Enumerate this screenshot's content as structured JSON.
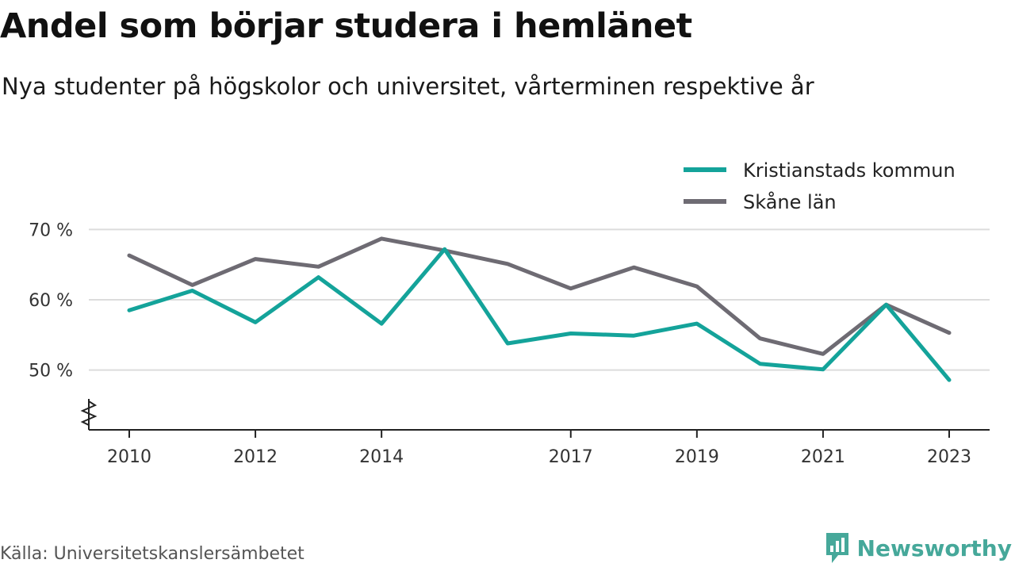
{
  "header": {
    "title": "Andel som börjar studera i hemlänet",
    "subtitle": "Nya studenter på högskolor och universitet, vårterminen respektive år"
  },
  "footer": {
    "source": "Källa: Universitetskanslersämbetet",
    "brand": "Newsworthy"
  },
  "chart_data": {
    "type": "line",
    "title": "Andel som börjar studera i hemlänet",
    "subtitle": "Nya studenter på högskolor och universitet, vårterminen respektive år",
    "x": [
      2010,
      2011,
      2012,
      2013,
      2014,
      2015,
      2016,
      2017,
      2018,
      2019,
      2020,
      2021,
      2022,
      2023
    ],
    "x_tick_labels": [
      "2010",
      "2012",
      "2014",
      "2017",
      "2019",
      "2021",
      "2023"
    ],
    "y_ticks": [
      50,
      60,
      70
    ],
    "y_tick_labels": [
      "50 %",
      "60 %",
      "70 %"
    ],
    "ylim": [
      41.5,
      75
    ],
    "axis_break": true,
    "grid": true,
    "legend_position": "top-right",
    "series": [
      {
        "name": "Kristianstads kommun",
        "color": "#14a39a",
        "values": [
          58.5,
          61.3,
          56.8,
          63.2,
          56.6,
          67.2,
          53.8,
          55.2,
          54.9,
          56.6,
          50.9,
          50.1,
          59.3,
          48.6
        ]
      },
      {
        "name": "Skåne län",
        "color": "#6e6b73",
        "values": [
          66.3,
          62.1,
          65.8,
          64.7,
          68.7,
          67.0,
          65.1,
          61.6,
          64.6,
          61.9,
          54.5,
          52.3,
          59.3,
          55.3
        ]
      }
    ]
  }
}
